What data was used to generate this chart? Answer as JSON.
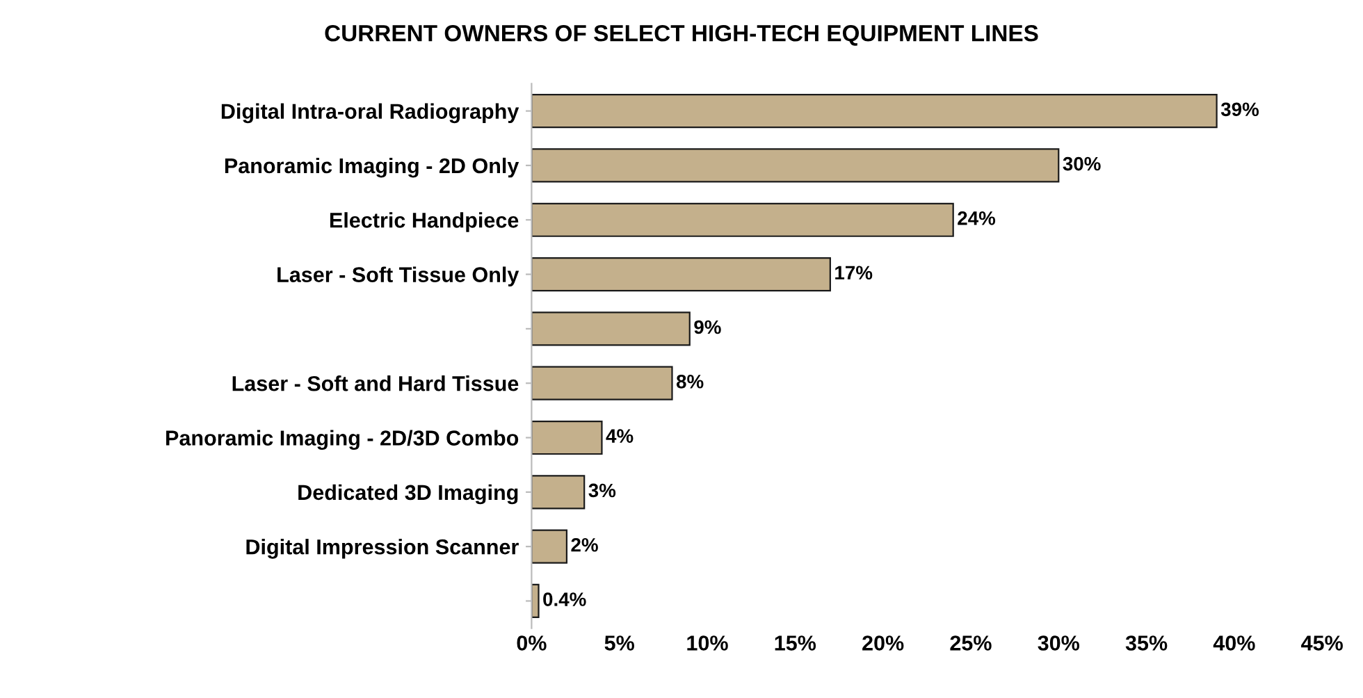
{
  "chart_data": {
    "type": "bar",
    "orientation": "horizontal",
    "title": "CURRENT OWNERS OF SELECT HIGH-TECH EQUIPMENT LINES",
    "categories": [
      "Digital Intra-oral Radiography",
      "Panoramic Imaging - 2D Only",
      "Electric Handpiece",
      "Laser - Soft Tissue Only",
      null,
      "Laser - Soft and Hard Tissue",
      "Panoramic Imaging - 2D/3D Combo",
      "Dedicated 3D Imaging",
      "Digital Impression Scanner",
      null
    ],
    "values": [
      39,
      30,
      24,
      17,
      9,
      8,
      4,
      3,
      2,
      0.4
    ],
    "value_labels": [
      "39%",
      "30%",
      "24%",
      "17%",
      "9%",
      "8%",
      "4%",
      "3%",
      "2%",
      "0.4%"
    ],
    "color": "#c4b08c",
    "xlim": [
      0,
      45
    ],
    "xticks": [
      {
        "value": 0,
        "label": "0%"
      },
      {
        "value": 5,
        "label": "5%"
      },
      {
        "value": 10,
        "label": "10%"
      },
      {
        "value": 15,
        "label": "15%"
      },
      {
        "value": 20,
        "label": "20%"
      },
      {
        "value": 25,
        "label": "25%"
      },
      {
        "value": 30,
        "label": "30%"
      },
      {
        "value": 35,
        "label": "35%"
      },
      {
        "value": 40,
        "label": "40%"
      },
      {
        "value": 45,
        "label": "45%"
      }
    ],
    "grid": false,
    "legend": false
  }
}
